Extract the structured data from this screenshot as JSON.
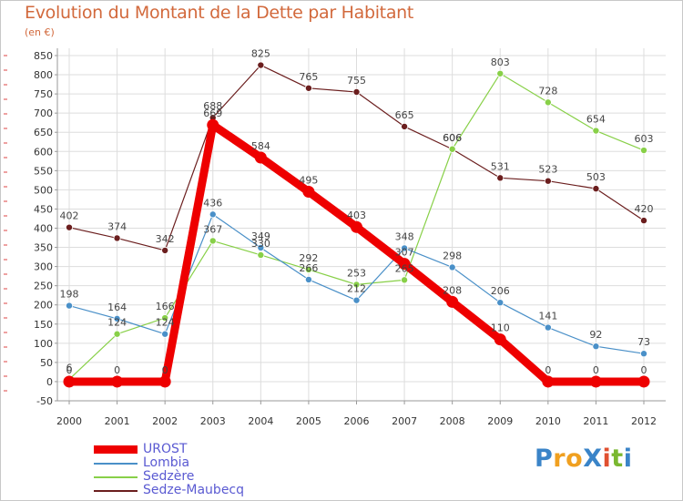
{
  "title": "Evolution du Montant de la Dette par Habitant",
  "unit": "(en €)",
  "brand": {
    "text": "ProXiti",
    "letter_colors": [
      "#3a84c8",
      "#f0a020",
      "#f0a020",
      "#3a84c8",
      "#e05030",
      "#7ab830",
      "#3a84c8"
    ]
  },
  "chart_data": {
    "type": "line",
    "title": "Evolution du Montant de la Dette par Habitant",
    "ylabel": "(en €)",
    "xlabel": "",
    "x": [
      "2000",
      "2001",
      "2002",
      "2003",
      "2004",
      "2005",
      "2006",
      "2007",
      "2008",
      "2009",
      "2010",
      "2011",
      "2012"
    ],
    "ylim": [
      -50,
      850
    ],
    "yticks": [
      -50,
      0,
      50,
      100,
      150,
      200,
      250,
      300,
      350,
      400,
      450,
      500,
      550,
      600,
      650,
      700,
      750,
      800,
      850
    ],
    "grid": true,
    "legend_position": "bottom-left",
    "series": [
      {
        "name": "Sedze-Maubecq",
        "color": "#6b1e1e",
        "values": [
          402,
          374,
          342,
          688,
          825,
          765,
          755,
          665,
          606,
          531,
          523,
          503,
          420
        ],
        "thick": false
      },
      {
        "name": "Sedzère",
        "color": "#88d048",
        "values": [
          6,
          124,
          166,
          367,
          330,
          292,
          253,
          265,
          606,
          803,
          728,
          654,
          603
        ],
        "thick": false
      },
      {
        "name": "Lombia",
        "color": "#4a90c8",
        "values": [
          198,
          164,
          124,
          436,
          349,
          266,
          212,
          348,
          298,
          206,
          141,
          92,
          73
        ],
        "thick": false
      },
      {
        "name": "UROST",
        "color": "#ee0000",
        "values": [
          0,
          0,
          0,
          669,
          584,
          495,
          403,
          307,
          208,
          110,
          0,
          0,
          0
        ],
        "thick": true
      }
    ],
    "legend_order": [
      "UROST",
      "Lombia",
      "Sedzère",
      "Sedze-Maubecq"
    ]
  }
}
